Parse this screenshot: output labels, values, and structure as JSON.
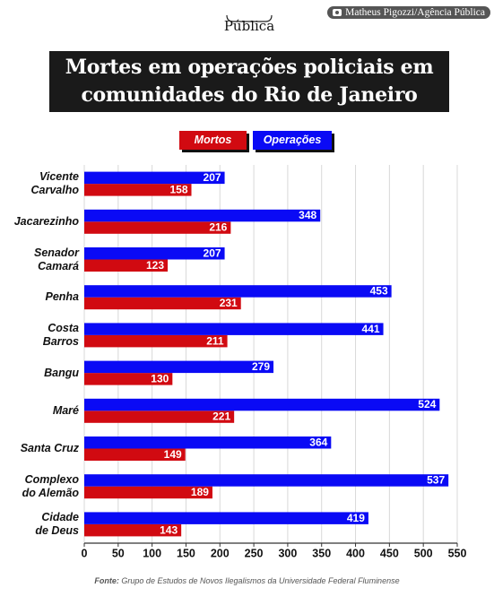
{
  "brand": "Pública",
  "credit": "Matheus Pigozzi/Agência Pública",
  "chart_data": {
    "type": "bar",
    "orientation": "horizontal",
    "title": "Mortes em operações policiais em\ncomunidades do Rio de Janeiro",
    "categories": [
      "Vicente\nCarvalho",
      "Jacarezinho",
      "Senador\nCamará",
      "Penha",
      "Costa\nBarros",
      "Bangu",
      "Maré",
      "Santa Cruz",
      "Complexo\ndo Alemão",
      "Cidade\nde Deus"
    ],
    "series": [
      {
        "name": "Mortos",
        "color": "#d10a11",
        "values": [
          158,
          216,
          123,
          231,
          211,
          130,
          221,
          149,
          189,
          143
        ]
      },
      {
        "name": "Operações",
        "color": "#0a0af5",
        "values": [
          207,
          348,
          207,
          453,
          441,
          279,
          524,
          364,
          537,
          419
        ]
      }
    ],
    "xlim": [
      0,
      550
    ],
    "xticks": [
      0,
      50,
      100,
      150,
      200,
      250,
      300,
      350,
      400,
      450,
      500,
      550
    ],
    "grid": true,
    "source_label": "Fonte:",
    "source": "Grupo de Estudos de Novos Ilegalismos da Universidade Federal Fluminense"
  }
}
